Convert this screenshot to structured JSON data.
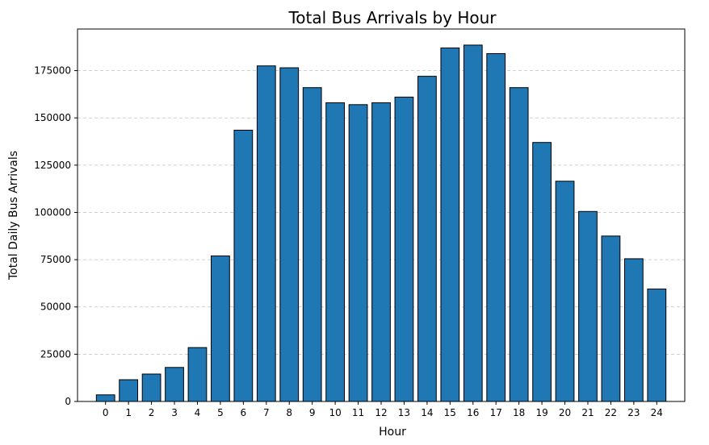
{
  "chart_data": {
    "type": "bar",
    "title": "Total Bus Arrivals by Hour",
    "xlabel": "Hour",
    "ylabel": "Total Daily Bus Arrivals",
    "categories": [
      "0",
      "1",
      "2",
      "3",
      "4",
      "5",
      "6",
      "7",
      "8",
      "9",
      "10",
      "11",
      "12",
      "13",
      "14",
      "15",
      "16",
      "17",
      "18",
      "19",
      "20",
      "21",
      "22",
      "23",
      "24"
    ],
    "values": [
      3500,
      11500,
      14500,
      18000,
      28500,
      77000,
      143500,
      177500,
      176500,
      166000,
      158000,
      157000,
      158000,
      161000,
      172000,
      187000,
      188500,
      184000,
      166000,
      137000,
      116500,
      100500,
      87500,
      75500,
      59500
    ],
    "ylim": [
      0,
      197000
    ],
    "yticks": [
      0,
      25000,
      50000,
      75000,
      100000,
      125000,
      150000,
      175000
    ],
    "ytick_labels": [
      "0",
      "25000",
      "50000",
      "75000",
      "100000",
      "125000",
      "150000",
      "175000"
    ],
    "grid": "y-dashed",
    "bar_color": "#1f77b4",
    "edge_color": "#000000",
    "grid_color": "#c0c0c0"
  }
}
